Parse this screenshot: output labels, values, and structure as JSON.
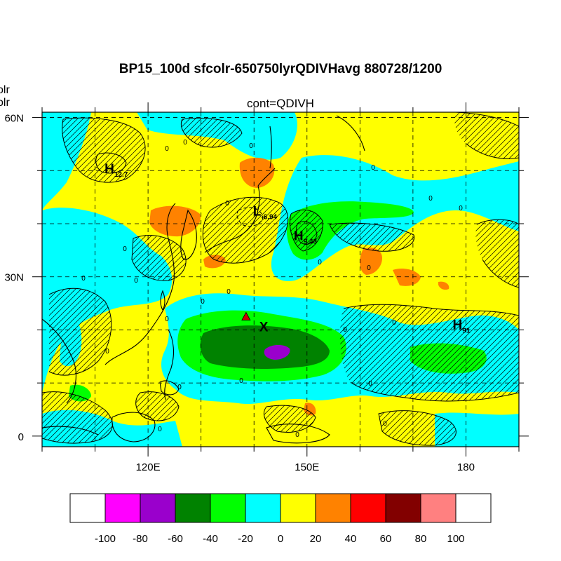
{
  "title": "BP15_100d sfcolr-650750lyrQDIVHavg  880728/1200",
  "subtitle": "cont=QDIVH",
  "left_cut_labels": [
    "olr",
    "olr"
  ],
  "map": {
    "lat_labels": [
      "60N",
      "30N",
      "0"
    ],
    "lon_labels": [
      "120E",
      "150E",
      "180"
    ],
    "lat_values": [
      60,
      30,
      0
    ],
    "lon_values": [
      120,
      150,
      180
    ],
    "extent": {
      "lon_min": 100,
      "lon_max": 190,
      "lat_min": -2,
      "lat_max": 61
    },
    "annotations": [
      {
        "letter": "H",
        "value": "12.7",
        "lon": 111.8,
        "lat": 49.5
      },
      {
        "letter": "L",
        "value": "-6.94",
        "lon": 139.8,
        "lat": 41.5
      },
      {
        "letter": "H",
        "value": "9.43",
        "lon": 147.5,
        "lat": 36.9
      },
      {
        "letter": "H",
        "value": "91",
        "lon": 177.5,
        "lat": 20.1
      },
      {
        "letter": "X",
        "value": "",
        "lon": 141.0,
        "lat": 19.7
      }
    ],
    "marker": {
      "type": "triangle",
      "color": "#cc0000",
      "lon": 138.5,
      "lat": 22.5
    },
    "contour_label": "0"
  },
  "colorbar": {
    "colors": [
      "#ffffff",
      "#ff00ff",
      "#9a00cc",
      "#008200",
      "#00ff00",
      "#00ffff",
      "#ffff00",
      "#ff8200",
      "#ff0000",
      "#820000",
      "#ff8080",
      "#ffffff"
    ],
    "tick_labels": [
      "-100",
      "-80",
      "-60",
      "-40",
      "-20",
      "0",
      "20",
      "40",
      "60",
      "80",
      "100"
    ]
  }
}
